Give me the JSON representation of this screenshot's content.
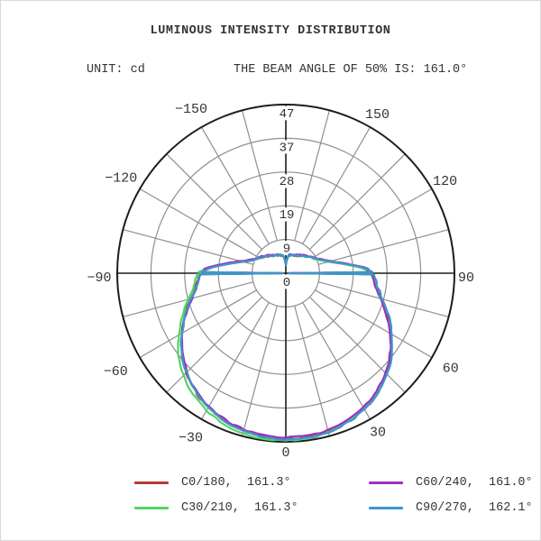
{
  "header": {
    "title": "LUMINOUS INTENSITY DISTRIBUTION",
    "unit_label": "UNIT: cd",
    "beam_angle_label": "THE BEAM ANGLE OF 50% IS: 161.0°"
  },
  "chart_data": {
    "type": "polar-line",
    "title": "LUMINOUS INTENSITY DISTRIBUTION",
    "unit": "cd",
    "beam_angle_50pct": "161.0°",
    "rmax": 47,
    "radial_ticks": [
      47,
      37,
      28,
      19,
      9,
      0
    ],
    "angle_ticks_deg": [
      -150,
      -120,
      -90,
      -60,
      -30,
      0,
      30,
      60,
      90,
      120,
      150
    ],
    "spoke_step_deg": 15,
    "grid_on": true,
    "grid_color": "#8f8f8f",
    "axis_color": "#1c1c1c",
    "orientation": "0 degrees at bottom, positive angles to the right",
    "profile_deg": [
      0,
      10,
      20,
      30,
      40,
      50,
      60,
      70,
      78,
      84,
      89.3,
      90,
      90.7,
      94,
      98,
      102,
      106,
      110,
      115,
      120,
      126,
      133,
      140,
      147,
      154,
      161,
      167,
      171,
      174,
      177,
      180
    ],
    "profile_cd": [
      46.4,
      46.1,
      45.2,
      43.6,
      41.2,
      37.9,
      33.8,
      29.6,
      26.4,
      25.0,
      24.2,
      0.9,
      23.8,
      21.3,
      17.3,
      14.2,
      11.9,
      10.5,
      9.3,
      8.55,
      7.75,
      6.95,
      6.3,
      5.85,
      5.5,
      5.3,
      5.1,
      4.85,
      4.25,
      3.3,
      2.4
    ],
    "series": [
      {
        "name": "C0/180",
        "beam_angle": "161.3°",
        "color": "#b63a33"
      },
      {
        "name": "C30/210",
        "beam_angle": "161.3°",
        "color": "#4fd55f"
      },
      {
        "name": "C60/240",
        "beam_angle": "161.0°",
        "color": "#9d31c3"
      },
      {
        "name": "C90/270",
        "beam_angle": "162.1°",
        "color": "#3d97ca"
      }
    ],
    "legend_position": "bottom"
  },
  "legend": {
    "items": [
      {
        "label": "C0/180,  161.3°",
        "color": "#b63a33"
      },
      {
        "label": "C30/210,  161.3°",
        "color": "#4fd55f"
      },
      {
        "label": "C60/240,  161.0°",
        "color": "#9d31c3"
      },
      {
        "label": "C90/270,  162.1°",
        "color": "#3d97ca"
      }
    ]
  }
}
